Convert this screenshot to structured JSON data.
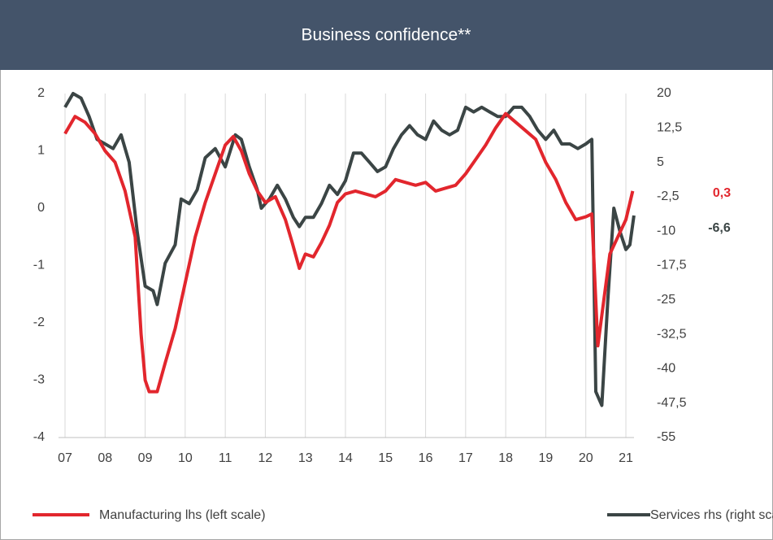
{
  "chart_data": {
    "type": "line",
    "title": "Business confidence**",
    "xticks": [
      {
        "value": 2007,
        "label": "07"
      },
      {
        "value": 2008,
        "label": "08"
      },
      {
        "value": 2009,
        "label": "09"
      },
      {
        "value": 2010,
        "label": "10"
      },
      {
        "value": 2011,
        "label": "11"
      },
      {
        "value": 2012,
        "label": "12"
      },
      {
        "value": 2013,
        "label": "13"
      },
      {
        "value": 2014,
        "label": "14"
      },
      {
        "value": 2015,
        "label": "15"
      },
      {
        "value": 2016,
        "label": "16"
      },
      {
        "value": 2017,
        "label": "17"
      },
      {
        "value": 2018,
        "label": "18"
      },
      {
        "value": 2019,
        "label": "19"
      },
      {
        "value": 2020,
        "label": "20"
      },
      {
        "value": 2021,
        "label": "21"
      }
    ],
    "xlim": [
      2007,
      2021
    ],
    "ylim": [
      -4,
      2
    ],
    "yticks": [
      -4,
      -3,
      -2,
      -1,
      0,
      1,
      2
    ],
    "y2lim": [
      -55,
      20
    ],
    "y2ticks": [
      -55,
      {
        "value": -47.5,
        "label": "-47,5"
      },
      -40,
      {
        "value": -32.5,
        "label": "-32,5"
      },
      -25,
      {
        "value": -17.5,
        "label": "-17,5"
      },
      -10,
      {
        "value": -2.5,
        "label": "-2,5"
      },
      5,
      {
        "value": 12.5,
        "label": "12,5"
      },
      20
    ],
    "grid": "x",
    "series": [
      {
        "name": "Manufacturing lhs (left scale)",
        "color": "#e2262d",
        "x": [
          2007,
          2007.25,
          2007.5,
          2007.75,
          2008,
          2008.25,
          2008.5,
          2008.75,
          2008.9,
          2009,
          2009.1,
          2009.3,
          2009.5,
          2009.75,
          2010,
          2010.25,
          2010.5,
          2010.75,
          2011,
          2011.2,
          2011.4,
          2011.6,
          2011.8,
          2012,
          2012.25,
          2012.5,
          2012.67,
          2012.85,
          2013,
          2013.2,
          2013.4,
          2013.6,
          2013.8,
          2014,
          2014.25,
          2014.5,
          2014.75,
          2015,
          2015.25,
          2015.5,
          2015.75,
          2016,
          2016.25,
          2016.5,
          2016.75,
          2017,
          2017.25,
          2017.5,
          2017.75,
          2018,
          2018.25,
          2018.5,
          2018.75,
          2019,
          2019.25,
          2019.5,
          2019.75,
          2020,
          2020.15,
          2020.3,
          2020.45,
          2020.6,
          2020.8,
          2021,
          2021.17
        ],
        "values": [
          1.3,
          1.6,
          1.5,
          1.3,
          1.0,
          0.8,
          0.3,
          -0.5,
          -2.2,
          -3.0,
          -3.2,
          -3.2,
          -2.7,
          -2.1,
          -1.3,
          -0.5,
          0.1,
          0.6,
          1.1,
          1.25,
          1.0,
          0.6,
          0.3,
          0.1,
          0.2,
          -0.2,
          -0.6,
          -1.05,
          -0.8,
          -0.85,
          -0.6,
          -0.3,
          0.1,
          0.25,
          0.3,
          0.25,
          0.2,
          0.3,
          0.5,
          0.45,
          0.4,
          0.45,
          0.3,
          0.35,
          0.4,
          0.6,
          0.85,
          1.1,
          1.4,
          1.65,
          1.5,
          1.35,
          1.2,
          0.8,
          0.5,
          0.1,
          -0.2,
          -0.15,
          -0.1,
          -2.4,
          -1.6,
          -0.8,
          -0.5,
          -0.2,
          0.3
        ]
      },
      {
        "name": "Services rhs (right scale)",
        "color": "#3b4545",
        "axis": "y2",
        "x": [
          2007,
          2007.2,
          2007.4,
          2007.6,
          2007.8,
          2008,
          2008.2,
          2008.4,
          2008.6,
          2008.8,
          2009,
          2009.2,
          2009.3,
          2009.5,
          2009.75,
          2009.9,
          2010.1,
          2010.3,
          2010.5,
          2010.75,
          2011,
          2011.25,
          2011.4,
          2011.6,
          2011.8,
          2011.9,
          2012.1,
          2012.3,
          2012.5,
          2012.7,
          2012.85,
          2013,
          2013.2,
          2013.4,
          2013.6,
          2013.8,
          2014,
          2014.2,
          2014.4,
          2014.6,
          2014.8,
          2015,
          2015.2,
          2015.4,
          2015.6,
          2015.8,
          2016,
          2016.2,
          2016.4,
          2016.6,
          2016.8,
          2017,
          2017.2,
          2017.4,
          2017.6,
          2017.8,
          2018,
          2018.2,
          2018.4,
          2018.6,
          2018.8,
          2019,
          2019.2,
          2019.4,
          2019.6,
          2019.8,
          2020,
          2020.15,
          2020.25,
          2020.4,
          2020.55,
          2020.7,
          2020.85,
          2021,
          2021.1,
          2021.2
        ],
        "values": [
          17,
          20,
          19,
          15,
          10,
          9,
          8,
          11,
          5,
          -10,
          -22,
          -23,
          -26,
          -17,
          -13,
          -3,
          -4,
          -1,
          6,
          8,
          4,
          11,
          10,
          4,
          -1,
          -5,
          -3,
          0,
          -3,
          -7,
          -9,
          -7,
          -7,
          -4,
          0,
          -2,
          1,
          7,
          7,
          5,
          3,
          4,
          8,
          11,
          13,
          11,
          10,
          14,
          12,
          11,
          12,
          17,
          16,
          17,
          16,
          15,
          15,
          17,
          17,
          15,
          12,
          10,
          12,
          9,
          9,
          8,
          9,
          10,
          -45,
          -48,
          -25,
          -5,
          -10,
          -14,
          -13,
          -6.6
        ]
      }
    ],
    "annotations": [
      {
        "text": "0,3",
        "color": "#e2262d"
      },
      {
        "text": "-6,6",
        "color": "#3b4545"
      }
    ]
  }
}
